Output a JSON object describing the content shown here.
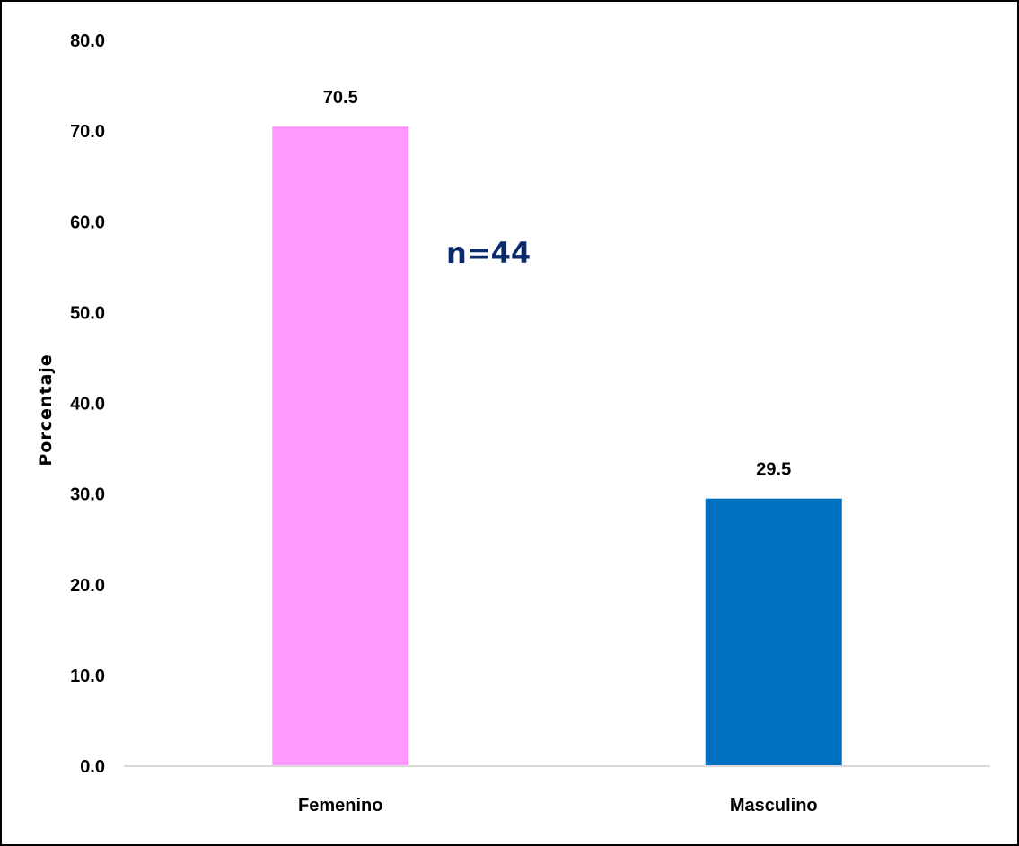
{
  "chart_data": {
    "type": "bar",
    "categories": [
      "Femenino",
      "Masculino"
    ],
    "values": [
      70.5,
      29.5
    ],
    "data_labels": [
      "70.5",
      "29.5"
    ],
    "colors": [
      "#FF99FF",
      "#0070C0"
    ],
    "title": "",
    "xlabel": "",
    "ylabel": "Porcentaje",
    "ylim": [
      0,
      80
    ],
    "yticks": [
      "0.0",
      "10.0",
      "20.0",
      "30.0",
      "40.0",
      "50.0",
      "60.0",
      "70.0",
      "80.0"
    ],
    "annotation": "n=44",
    "grid": false
  }
}
